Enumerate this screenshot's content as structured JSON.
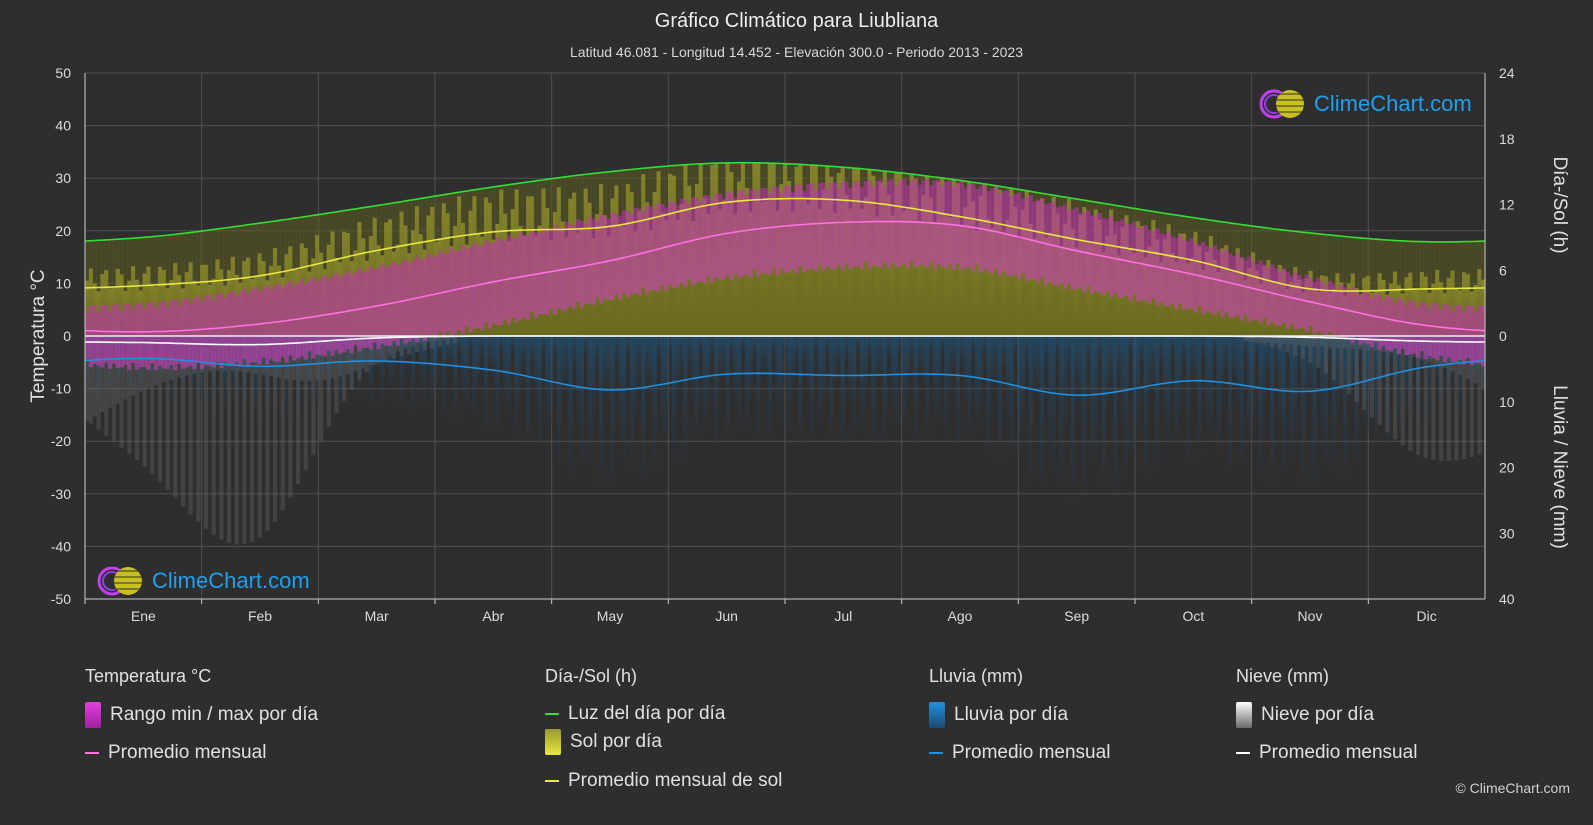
{
  "title": "Gráfico Climático para Liubliana",
  "subtitle": "Latitud 46.081 - Longitud 14.452 - Elevación 300.0 - Periodo 2013 - 2023",
  "logo_text": "ClimeChart.com",
  "copyright": "© ClimeChart.com",
  "colors": {
    "background": "#2e2e2e",
    "daylight": "#33dd33",
    "sunshine_line": "#e8e840",
    "sunshine_fill": "#9a9a2a",
    "temp_range": "#d030c0",
    "temp_line": "#ff70e0",
    "rain": "#2090e0",
    "snow": "#ffffff",
    "brand": "#1ea0f0"
  },
  "legend": {
    "groups": [
      {
        "title": "Temperatura °C",
        "items": [
          {
            "label": "Rango min / max por día",
            "kind": "box",
            "color": "#d020d0"
          },
          {
            "label": "Promedio mensual",
            "kind": "line",
            "color": "#ff70e0"
          }
        ]
      },
      {
        "title": "Día-/Sol (h)",
        "items": [
          {
            "label": "Luz del día por día",
            "kind": "line",
            "color": "#33dd33"
          },
          {
            "label": "Sol por día",
            "kind": "box",
            "color": "#c8c830"
          },
          {
            "label": "Promedio mensual de sol",
            "kind": "line",
            "color": "#e8e840"
          }
        ]
      },
      {
        "title": "Lluvia (mm)",
        "items": [
          {
            "label": "Lluvia por día",
            "kind": "box",
            "color": "#2080d0"
          },
          {
            "label": "Promedio mensual",
            "kind": "line",
            "color": "#2090e0"
          }
        ]
      },
      {
        "title": "Nieve (mm)",
        "items": [
          {
            "label": "Nieve por día",
            "kind": "box",
            "color": "#dddddd"
          },
          {
            "label": "Promedio mensual",
            "kind": "line",
            "color": "#ffffff"
          }
        ]
      }
    ]
  },
  "chart_data": {
    "type": "line",
    "categories": [
      "Ene",
      "Feb",
      "Mar",
      "Abr",
      "May",
      "Jun",
      "Jul",
      "Ago",
      "Sep",
      "Oct",
      "Nov",
      "Dic"
    ],
    "y_left": {
      "label": "Temperatura °C",
      "range": [
        -50,
        50
      ],
      "ticks": [
        50,
        40,
        30,
        20,
        10,
        0,
        -10,
        -20,
        -30,
        -40,
        -50
      ]
    },
    "y_right_top": {
      "label": "Día-/Sol (h)",
      "range": [
        0,
        24
      ],
      "ticks": [
        24,
        18,
        12,
        6,
        0
      ]
    },
    "y_right_bottom": {
      "label": "Lluvia / Nieve (mm)",
      "range": [
        0,
        40
      ],
      "ticks": [
        10,
        20,
        30,
        40
      ]
    },
    "grid": true,
    "series": [
      {
        "name": "Luz del día por día",
        "axis": "sun_hours",
        "values": [
          9.0,
          10.3,
          11.9,
          13.6,
          15.0,
          15.8,
          15.4,
          14.2,
          12.5,
          10.8,
          9.4,
          8.6
        ]
      },
      {
        "name": "Promedio mensual de sol",
        "axis": "sun_hours",
        "values": [
          4.6,
          5.5,
          7.8,
          9.5,
          10.0,
          12.2,
          12.4,
          10.9,
          8.8,
          6.9,
          4.3,
          4.3
        ]
      },
      {
        "name": "Promedio mensual",
        "group": "Temperatura °C",
        "axis": "temperature",
        "values": [
          0.8,
          2.3,
          5.7,
          10.3,
          14.3,
          19.5,
          21.6,
          21.0,
          16.2,
          11.7,
          6.5,
          2.0
        ]
      },
      {
        "name": "Promedio mensual",
        "group": "Lluvia (mm)",
        "axis": "precip_mm",
        "values": [
          3.4,
          4.6,
          3.8,
          5.2,
          8.2,
          5.8,
          6.0,
          6.0,
          9.0,
          6.8,
          8.4,
          4.7
        ]
      },
      {
        "name": "Promedio mensual",
        "group": "Nieve (mm)",
        "axis": "precip_mm",
        "values": [
          1.0,
          1.3,
          0.3,
          0.0,
          0.0,
          0.0,
          0.0,
          0.0,
          0.0,
          0.0,
          0.2,
          0.8
        ]
      }
    ],
    "temp_range": {
      "name": "Rango min / max por día",
      "min": [
        -5,
        -4,
        -1,
        3,
        8,
        12,
        14,
        14,
        10,
        6,
        2,
        -3
      ],
      "max": [
        5,
        8,
        12,
        17,
        22,
        26,
        28,
        28,
        23,
        17,
        10,
        5
      ]
    }
  }
}
